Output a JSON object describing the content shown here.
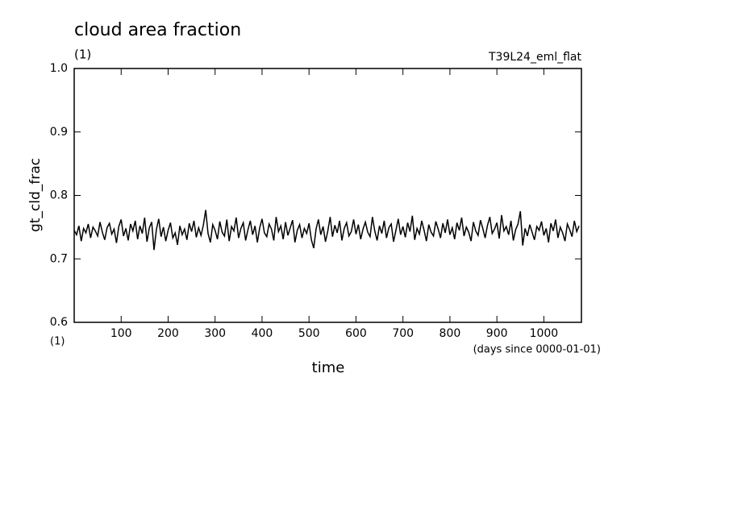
{
  "chart_data": {
    "type": "line",
    "title": "cloud area fraction",
    "unit": "(1)",
    "run_label": "T39L24_eml_flat",
    "y_label": "gt_cld_frac",
    "x_unit": "(1)",
    "x_note": "(days since 0000-01-01)",
    "x_label": "time",
    "color": "#000000",
    "xlim": [
      0,
      1080
    ],
    "xticks": [
      100,
      200,
      300,
      400,
      500,
      600,
      700,
      800,
      900,
      1000
    ],
    "ylim": [
      0.6,
      1.0
    ],
    "yticks": [
      0.6,
      0.7,
      0.8,
      0.9,
      {
        "value": 1.0,
        "label": "1.0"
      }
    ],
    "x": [
      0,
      5,
      10,
      15,
      20,
      25,
      30,
      35,
      40,
      45,
      50,
      55,
      60,
      65,
      70,
      75,
      80,
      85,
      90,
      95,
      100,
      105,
      110,
      115,
      120,
      125,
      130,
      135,
      140,
      145,
      150,
      155,
      160,
      165,
      170,
      175,
      180,
      185,
      190,
      195,
      200,
      205,
      210,
      215,
      220,
      225,
      230,
      235,
      240,
      245,
      250,
      255,
      260,
      265,
      270,
      275,
      280,
      285,
      290,
      295,
      300,
      305,
      310,
      315,
      320,
      325,
      330,
      335,
      340,
      345,
      350,
      355,
      360,
      365,
      370,
      375,
      380,
      385,
      390,
      395,
      400,
      405,
      410,
      415,
      420,
      425,
      430,
      435,
      440,
      445,
      450,
      455,
      460,
      465,
      470,
      475,
      480,
      485,
      490,
      495,
      500,
      505,
      510,
      515,
      520,
      525,
      530,
      535,
      540,
      545,
      550,
      555,
      560,
      565,
      570,
      575,
      580,
      585,
      590,
      595,
      600,
      605,
      610,
      615,
      620,
      625,
      630,
      635,
      640,
      645,
      650,
      655,
      660,
      665,
      670,
      675,
      680,
      685,
      690,
      695,
      700,
      705,
      710,
      715,
      720,
      725,
      730,
      735,
      740,
      745,
      750,
      755,
      760,
      765,
      770,
      775,
      780,
      785,
      790,
      795,
      800,
      805,
      810,
      815,
      820,
      825,
      830,
      835,
      840,
      845,
      850,
      855,
      860,
      865,
      870,
      875,
      880,
      885,
      890,
      895,
      900,
      905,
      910,
      915,
      920,
      925,
      930,
      935,
      940,
      945,
      950,
      955,
      960,
      965,
      970,
      975,
      980,
      985,
      990,
      995,
      1000,
      1005,
      1010,
      1015,
      1020,
      1025,
      1030,
      1035,
      1040,
      1045,
      1050,
      1055,
      1060,
      1065,
      1070,
      1075
    ],
    "values": [
      0.745,
      0.738,
      0.752,
      0.728,
      0.748,
      0.741,
      0.755,
      0.733,
      0.75,
      0.744,
      0.736,
      0.758,
      0.742,
      0.73,
      0.749,
      0.756,
      0.739,
      0.747,
      0.725,
      0.751,
      0.762,
      0.736,
      0.748,
      0.729,
      0.755,
      0.744,
      0.76,
      0.731,
      0.752,
      0.74,
      0.765,
      0.727,
      0.749,
      0.758,
      0.714,
      0.746,
      0.763,
      0.735,
      0.75,
      0.728,
      0.745,
      0.757,
      0.733,
      0.741,
      0.722,
      0.752,
      0.738,
      0.747,
      0.73,
      0.756,
      0.743,
      0.76,
      0.734,
      0.749,
      0.737,
      0.753,
      0.777,
      0.74,
      0.726,
      0.754,
      0.745,
      0.731,
      0.759,
      0.742,
      0.736,
      0.762,
      0.728,
      0.751,
      0.744,
      0.765,
      0.733,
      0.748,
      0.757,
      0.729,
      0.746,
      0.76,
      0.738,
      0.752,
      0.726,
      0.749,
      0.763,
      0.741,
      0.735,
      0.755,
      0.747,
      0.729,
      0.766,
      0.743,
      0.752,
      0.731,
      0.758,
      0.737,
      0.749,
      0.761,
      0.726,
      0.745,
      0.754,
      0.733,
      0.748,
      0.74,
      0.756,
      0.73,
      0.717,
      0.747,
      0.762,
      0.738,
      0.751,
      0.727,
      0.744,
      0.766,
      0.735,
      0.753,
      0.741,
      0.76,
      0.729,
      0.748,
      0.757,
      0.736,
      0.743,
      0.762,
      0.739,
      0.754,
      0.731,
      0.747,
      0.758,
      0.742,
      0.735,
      0.766,
      0.744,
      0.729,
      0.752,
      0.74,
      0.76,
      0.733,
      0.749,
      0.755,
      0.727,
      0.745,
      0.763,
      0.738,
      0.751,
      0.734,
      0.757,
      0.743,
      0.768,
      0.73,
      0.748,
      0.739,
      0.76,
      0.745,
      0.728,
      0.754,
      0.742,
      0.736,
      0.759,
      0.747,
      0.733,
      0.756,
      0.741,
      0.762,
      0.738,
      0.749,
      0.731,
      0.757,
      0.745,
      0.765,
      0.736,
      0.75,
      0.742,
      0.728,
      0.758,
      0.744,
      0.737,
      0.761,
      0.748,
      0.733,
      0.753,
      0.766,
      0.74,
      0.747,
      0.757,
      0.732,
      0.769,
      0.744,
      0.751,
      0.738,
      0.76,
      0.729,
      0.746,
      0.755,
      0.775,
      0.721,
      0.748,
      0.736,
      0.754,
      0.742,
      0.73,
      0.751,
      0.745,
      0.759,
      0.737,
      0.748,
      0.726,
      0.756,
      0.744,
      0.762,
      0.733,
      0.75,
      0.741,
      0.728,
      0.755,
      0.746,
      0.735,
      0.76,
      0.743,
      0.752
    ]
  }
}
